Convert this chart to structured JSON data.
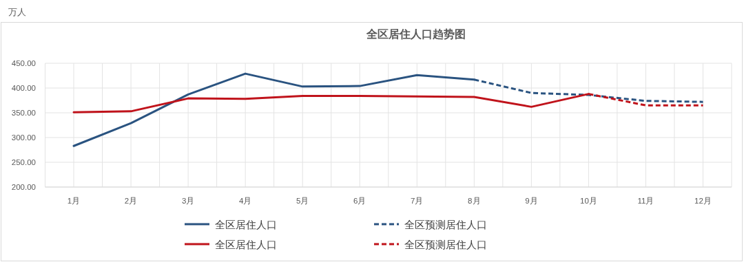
{
  "chart_data": {
    "type": "line",
    "title": "全区居住人口趋势图",
    "ylabel": "万人",
    "categories": [
      "1月",
      "2月",
      "3月",
      "4月",
      "5月",
      "6月",
      "7月",
      "8月",
      "9月",
      "10月",
      "11月",
      "12月"
    ],
    "ylim": [
      200,
      450
    ],
    "yticks": [
      {
        "value": 200,
        "label": "200.00"
      },
      {
        "value": 250,
        "label": "250.00"
      },
      {
        "value": 300,
        "label": "300.00"
      },
      {
        "value": 350,
        "label": "350.00"
      },
      {
        "value": 400,
        "label": "400.00"
      },
      {
        "value": 450,
        "label": "450.00"
      }
    ],
    "grid": true,
    "legend": "bottom",
    "marker": "none",
    "series": [
      {
        "name": "全区居住人口",
        "color": "#2a5380",
        "line_style": "solid",
        "values": [
          283,
          329,
          387,
          429,
          403,
          404,
          426,
          417,
          null,
          null,
          null,
          null
        ]
      },
      {
        "name": "全区预测居住人口",
        "color": "#2a5380",
        "line_style": "dashed",
        "values": [
          null,
          null,
          null,
          null,
          null,
          null,
          null,
          417,
          390,
          386,
          374,
          372
        ]
      },
      {
        "name": "全区居住人口",
        "color": "#c0131b",
        "line_style": "solid",
        "values": [
          351,
          353,
          379,
          378,
          384,
          384,
          383,
          382,
          362,
          388,
          null,
          null
        ]
      },
      {
        "name": "全区预测居住人口",
        "color": "#c0131b",
        "line_style": "dashed",
        "values": [
          null,
          null,
          null,
          null,
          null,
          null,
          null,
          null,
          null,
          388,
          365,
          365
        ]
      }
    ]
  }
}
